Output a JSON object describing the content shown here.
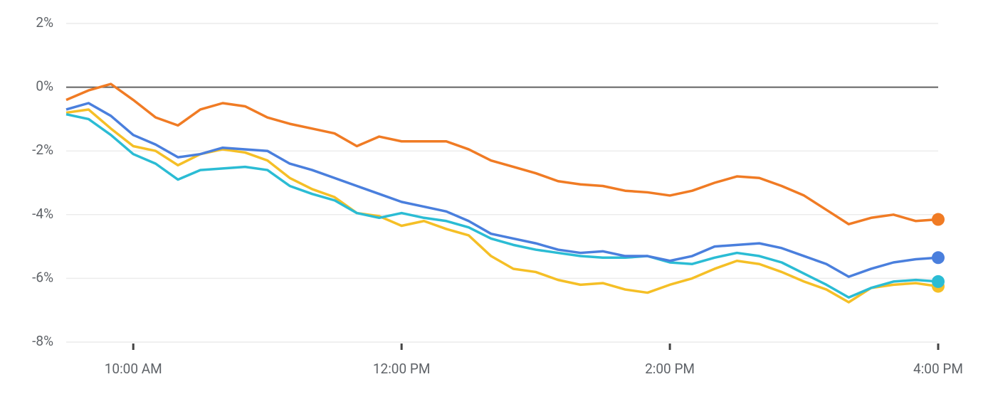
{
  "chart_data": {
    "type": "line",
    "x": [
      570,
      580,
      590,
      600,
      610,
      620,
      630,
      640,
      650,
      660,
      670,
      680,
      690,
      700,
      710,
      720,
      730,
      740,
      750,
      760,
      770,
      780,
      790,
      800,
      810,
      820,
      830,
      840,
      850,
      860,
      870,
      880,
      890,
      900,
      910,
      920,
      930,
      940,
      950,
      960
    ],
    "xlim": [
      570,
      960
    ],
    "xticks": [
      {
        "value": 600,
        "label": "10:00 AM"
      },
      {
        "value": 720,
        "label": "12:00 PM"
      },
      {
        "value": 840,
        "label": "2:00 PM"
      },
      {
        "value": 960,
        "label": "4:00 PM"
      }
    ],
    "ylim": [
      -8,
      2
    ],
    "yticks": [
      {
        "value": -8,
        "label": "-8%"
      },
      {
        "value": -6,
        "label": "-6%"
      },
      {
        "value": -4,
        "label": "-4%"
      },
      {
        "value": -2,
        "label": "-2%"
      },
      {
        "value": 0,
        "label": "0%"
      },
      {
        "value": 2,
        "label": "2%"
      }
    ],
    "grid": true,
    "zero_line": true,
    "end_markers": true,
    "series": [
      {
        "color": "#f5bf26",
        "values": [
          -0.8,
          -0.7,
          -1.3,
          -1.85,
          -2.0,
          -2.45,
          -2.1,
          -1.95,
          -2.05,
          -2.3,
          -2.85,
          -3.2,
          -3.45,
          -3.95,
          -4.05,
          -4.35,
          -4.2,
          -4.45,
          -4.65,
          -5.3,
          -5.7,
          -5.8,
          -6.05,
          -6.2,
          -6.15,
          -6.35,
          -6.45,
          -6.2,
          -6.0,
          -5.7,
          -5.45,
          -5.55,
          -5.8,
          -6.1,
          -6.35,
          -6.75,
          -6.3,
          -6.2,
          -6.15,
          -6.25
        ]
      },
      {
        "color": "#2bbcd4",
        "values": [
          -0.85,
          -1.0,
          -1.5,
          -2.1,
          -2.4,
          -2.9,
          -2.6,
          -2.55,
          -2.5,
          -2.6,
          -3.1,
          -3.35,
          -3.55,
          -3.95,
          -4.1,
          -3.95,
          -4.1,
          -4.2,
          -4.4,
          -4.75,
          -4.95,
          -5.1,
          -5.2,
          -5.3,
          -5.35,
          -5.35,
          -5.3,
          -5.5,
          -5.55,
          -5.35,
          -5.2,
          -5.3,
          -5.5,
          -5.85,
          -6.2,
          -6.6,
          -6.3,
          -6.1,
          -6.05,
          -6.1
        ]
      },
      {
        "color": "#4a7fdd",
        "values": [
          -0.7,
          -0.5,
          -0.9,
          -1.5,
          -1.8,
          -2.2,
          -2.1,
          -1.9,
          -1.95,
          -2.0,
          -2.4,
          -2.6,
          -2.85,
          -3.1,
          -3.35,
          -3.6,
          -3.75,
          -3.9,
          -4.2,
          -4.6,
          -4.75,
          -4.9,
          -5.1,
          -5.2,
          -5.15,
          -5.3,
          -5.3,
          -5.45,
          -5.3,
          -5.0,
          -4.95,
          -4.9,
          -5.05,
          -5.3,
          -5.55,
          -5.95,
          -5.7,
          -5.5,
          -5.4,
          -5.35
        ]
      },
      {
        "color": "#f07b24",
        "values": [
          -0.4,
          -0.1,
          0.1,
          -0.4,
          -0.95,
          -1.2,
          -0.7,
          -0.5,
          -0.6,
          -0.95,
          -1.15,
          -1.3,
          -1.45,
          -1.85,
          -1.55,
          -1.7,
          -1.7,
          -1.7,
          -1.95,
          -2.3,
          -2.5,
          -2.7,
          -2.95,
          -3.05,
          -3.1,
          -3.25,
          -3.3,
          -3.4,
          -3.25,
          -3.0,
          -2.8,
          -2.85,
          -3.1,
          -3.4,
          -3.85,
          -4.3,
          -4.1,
          -4.0,
          -4.2,
          -4.15
        ]
      }
    ]
  }
}
